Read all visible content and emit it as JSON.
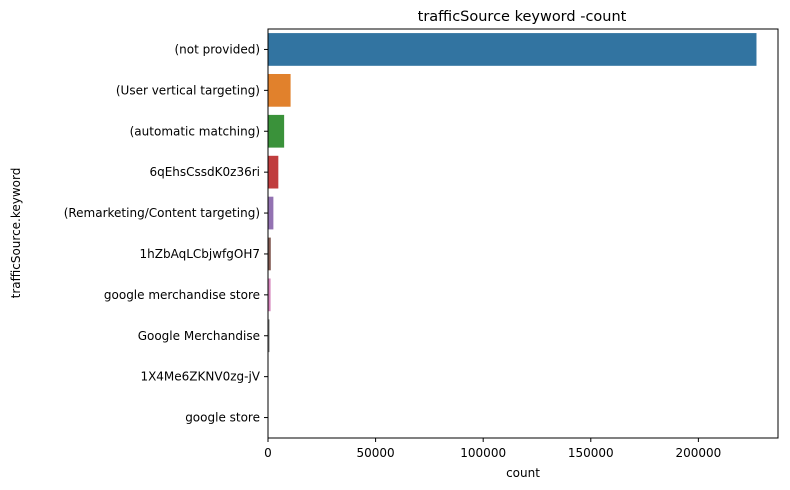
{
  "chart_data": {
    "type": "bar",
    "orientation": "horizontal",
    "title": "trafficSource keyword -count",
    "xlabel": "count",
    "ylabel": "trafficSource.keyword",
    "xlim": [
      0,
      237000
    ],
    "xticks": [
      0,
      50000,
      100000,
      150000,
      200000
    ],
    "grid": false,
    "categories": [
      "(not provided)",
      "(User vertical targeting)",
      "(automatic matching)",
      "6qEhsCssdK0z36ri",
      "(Remarketing/Content targeting)",
      "1hZbAqLCbjwfgOH7",
      "google merchandise store",
      "Google Merchandise",
      "1X4Me6ZKNV0zg-jV",
      "google store"
    ],
    "values": [
      227000,
      10500,
      7500,
      4800,
      2500,
      1300,
      1200,
      700,
      200,
      150
    ],
    "colors": [
      "#3274a1",
      "#e1812c",
      "#3a923a",
      "#c03d3e",
      "#9372b2",
      "#845b53",
      "#d684bd",
      "#7f7f7f",
      "#a9aa35",
      "#2ea9b9"
    ]
  }
}
